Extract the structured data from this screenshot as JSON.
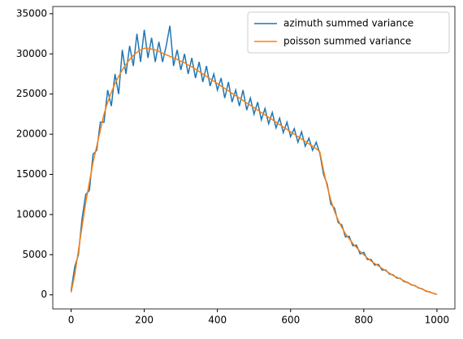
{
  "chart_data": {
    "type": "line",
    "x": [
      0,
      10,
      20,
      30,
      40,
      50,
      60,
      70,
      80,
      90,
      100,
      110,
      120,
      130,
      140,
      150,
      160,
      170,
      180,
      190,
      200,
      210,
      220,
      230,
      240,
      250,
      260,
      270,
      280,
      290,
      300,
      310,
      320,
      330,
      340,
      350,
      360,
      370,
      380,
      390,
      400,
      410,
      420,
      430,
      440,
      450,
      460,
      470,
      480,
      490,
      500,
      510,
      520,
      530,
      540,
      550,
      560,
      570,
      580,
      590,
      600,
      610,
      620,
      630,
      640,
      650,
      660,
      670,
      680,
      690,
      700,
      710,
      720,
      730,
      740,
      750,
      760,
      770,
      780,
      790,
      800,
      810,
      820,
      830,
      840,
      850,
      860,
      870,
      880,
      890,
      900,
      910,
      920,
      930,
      940,
      950,
      960,
      970,
      980,
      990,
      1000
    ],
    "series": [
      {
        "name": "azimuth summed variance",
        "color": "#1f77b4",
        "values": [
          500,
          3500,
          5000,
          9500,
          12500,
          13000,
          17500,
          18000,
          21500,
          21500,
          25500,
          23500,
          27500,
          25000,
          30500,
          27500,
          31000,
          28500,
          32500,
          29000,
          33000,
          29500,
          32000,
          29000,
          31500,
          29000,
          31000,
          33500,
          28500,
          30500,
          28000,
          30000,
          27500,
          29500,
          27000,
          29000,
          26500,
          28500,
          26000,
          27500,
          25500,
          27000,
          24500,
          26500,
          24000,
          25500,
          23500,
          25500,
          23000,
          24500,
          22500,
          24000,
          21800,
          23200,
          21300,
          22700,
          20800,
          22000,
          20200,
          21500,
          19700,
          20700,
          19000,
          20300,
          18500,
          19500,
          18000,
          19000,
          17600,
          15000,
          13800,
          11300,
          10800,
          9000,
          8700,
          7200,
          7300,
          6100,
          6200,
          5100,
          5300,
          4400,
          4400,
          3700,
          3800,
          3100,
          3100,
          2600,
          2500,
          2100,
          2050,
          1650,
          1550,
          1250,
          1150,
          850,
          750,
          450,
          380,
          180,
          60
        ]
      },
      {
        "name": "poisson summed variance",
        "color": "#ff7f0e",
        "values": [
          300,
          2500,
          5500,
          8500,
          11500,
          14000,
          16500,
          18500,
          20500,
          22500,
          24000,
          25200,
          26300,
          27200,
          28000,
          28700,
          29300,
          29800,
          30200,
          30500,
          30700,
          30700,
          30600,
          30500,
          30300,
          30100,
          29900,
          29700,
          29500,
          29300,
          29100,
          28900,
          28600,
          28400,
          28100,
          27800,
          27500,
          27200,
          26900,
          26600,
          26300,
          26000,
          25700,
          25400,
          25100,
          24800,
          24500,
          24200,
          23900,
          23600,
          23300,
          23000,
          22700,
          22400,
          22100,
          21800,
          21500,
          21200,
          20900,
          20600,
          20300,
          20000,
          19700,
          19400,
          19100,
          18800,
          18500,
          18200,
          17800,
          15500,
          13500,
          11800,
          10400,
          9300,
          8400,
          7600,
          7000,
          6400,
          5900,
          5400,
          5000,
          4600,
          4200,
          3900,
          3600,
          3300,
          3000,
          2700,
          2400,
          2200,
          2000,
          1750,
          1500,
          1300,
          1100,
          900,
          700,
          500,
          350,
          200,
          50
        ]
      }
    ],
    "xlim": [
      -50,
      1049
    ],
    "ylim": [
      -1750,
      35900
    ],
    "xticks": [
      0,
      200,
      400,
      600,
      800,
      1000
    ],
    "yticks": [
      0,
      5000,
      10000,
      15000,
      20000,
      25000,
      30000,
      35000
    ],
    "legend": "upper right"
  }
}
